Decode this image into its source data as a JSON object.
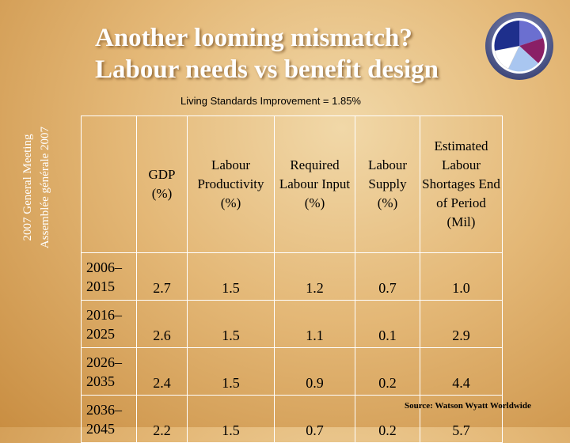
{
  "slide": {
    "title_line1": "Another looming mismatch?",
    "title_line2": "Labour needs vs benefit design",
    "side_label_line1": "2007 General Meeting",
    "side_label_line2": "Assemblée générale 2007",
    "subtitle": "Living Standards Improvement = 1.85%",
    "logo": "pie-chart-logo-icon",
    "source": "Source: Watson Wyatt Worldwide"
  },
  "table": {
    "headers": [
      "",
      "GDP (%)",
      "Labour Productivity (%)",
      "Required Labour Input (%)",
      "Labour Supply (%)",
      "Estimated Labour Shortages End of Period (Mil)"
    ],
    "rows": [
      {
        "period_line1": "2006–",
        "period_line2": "2015",
        "gdp": "2.7",
        "productivity": "1.5",
        "required": "1.2",
        "supply": "0.7",
        "shortage": "1.0"
      },
      {
        "period_line1": "2016–",
        "period_line2": "2025",
        "gdp": "2.6",
        "productivity": "1.5",
        "required": "1.1",
        "supply": "0.1",
        "shortage": "2.9"
      },
      {
        "period_line1": "2026–",
        "period_line2": "2035",
        "gdp": "2.4",
        "productivity": "1.5",
        "required": "0.9",
        "supply": "0.2",
        "shortage": "4.4"
      },
      {
        "period_line1": "2036–",
        "period_line2": "2045",
        "gdp": "2.2",
        "productivity": "1.5",
        "required": "0.7",
        "supply": "0.2",
        "shortage": "5.7"
      }
    ]
  },
  "colors": {
    "background": "#e4b877",
    "text": "#000000",
    "title": "#ffffff"
  }
}
